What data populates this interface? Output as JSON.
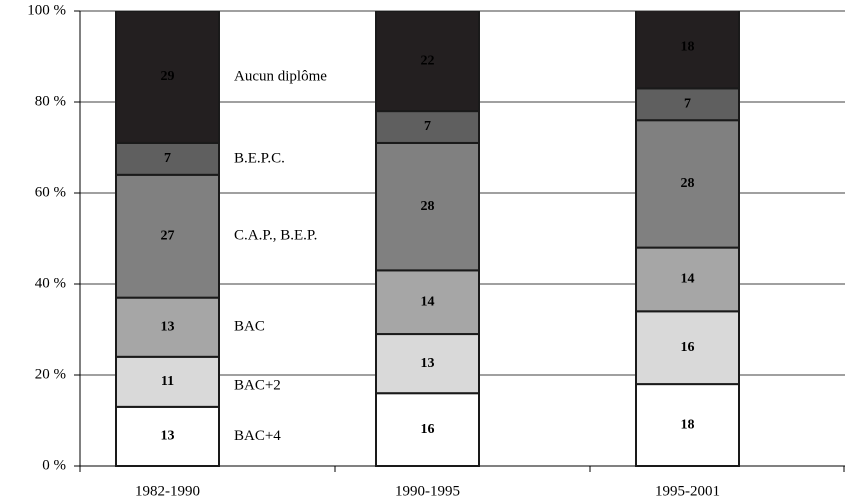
{
  "chart_data": {
    "type": "stacked-bar",
    "categories": [
      "1982-1990",
      "1990-1995",
      "1995-2001"
    ],
    "series": [
      {
        "name": "BAC+4",
        "color": "#ffffff",
        "values": [
          13,
          16,
          18
        ]
      },
      {
        "name": "BAC+2",
        "color": "#d9d9d9",
        "values": [
          11,
          13,
          16
        ]
      },
      {
        "name": "BAC",
        "color": "#a6a6a6",
        "values": [
          13,
          14,
          14
        ]
      },
      {
        "name": "C.A.P., B.E.P.",
        "color": "#808080",
        "values": [
          27,
          28,
          28
        ]
      },
      {
        "name": "B.E.P.C.",
        "color": "#5f5f5f",
        "values": [
          7,
          7,
          7
        ]
      },
      {
        "name": "Aucun diplôme",
        "color": "#231f20",
        "values": [
          29,
          22,
          18
        ]
      }
    ],
    "ylim": [
      0,
      100
    ],
    "yticks": [
      {
        "value": 0,
        "label": "0 %"
      },
      {
        "value": 20,
        "label": "20 %"
      },
      {
        "value": 40,
        "label": "40 %"
      },
      {
        "value": 60,
        "label": "60 %"
      },
      {
        "value": 80,
        "label": "80 %"
      },
      {
        "value": 100,
        "label": "100 %"
      }
    ],
    "grid": true
  }
}
